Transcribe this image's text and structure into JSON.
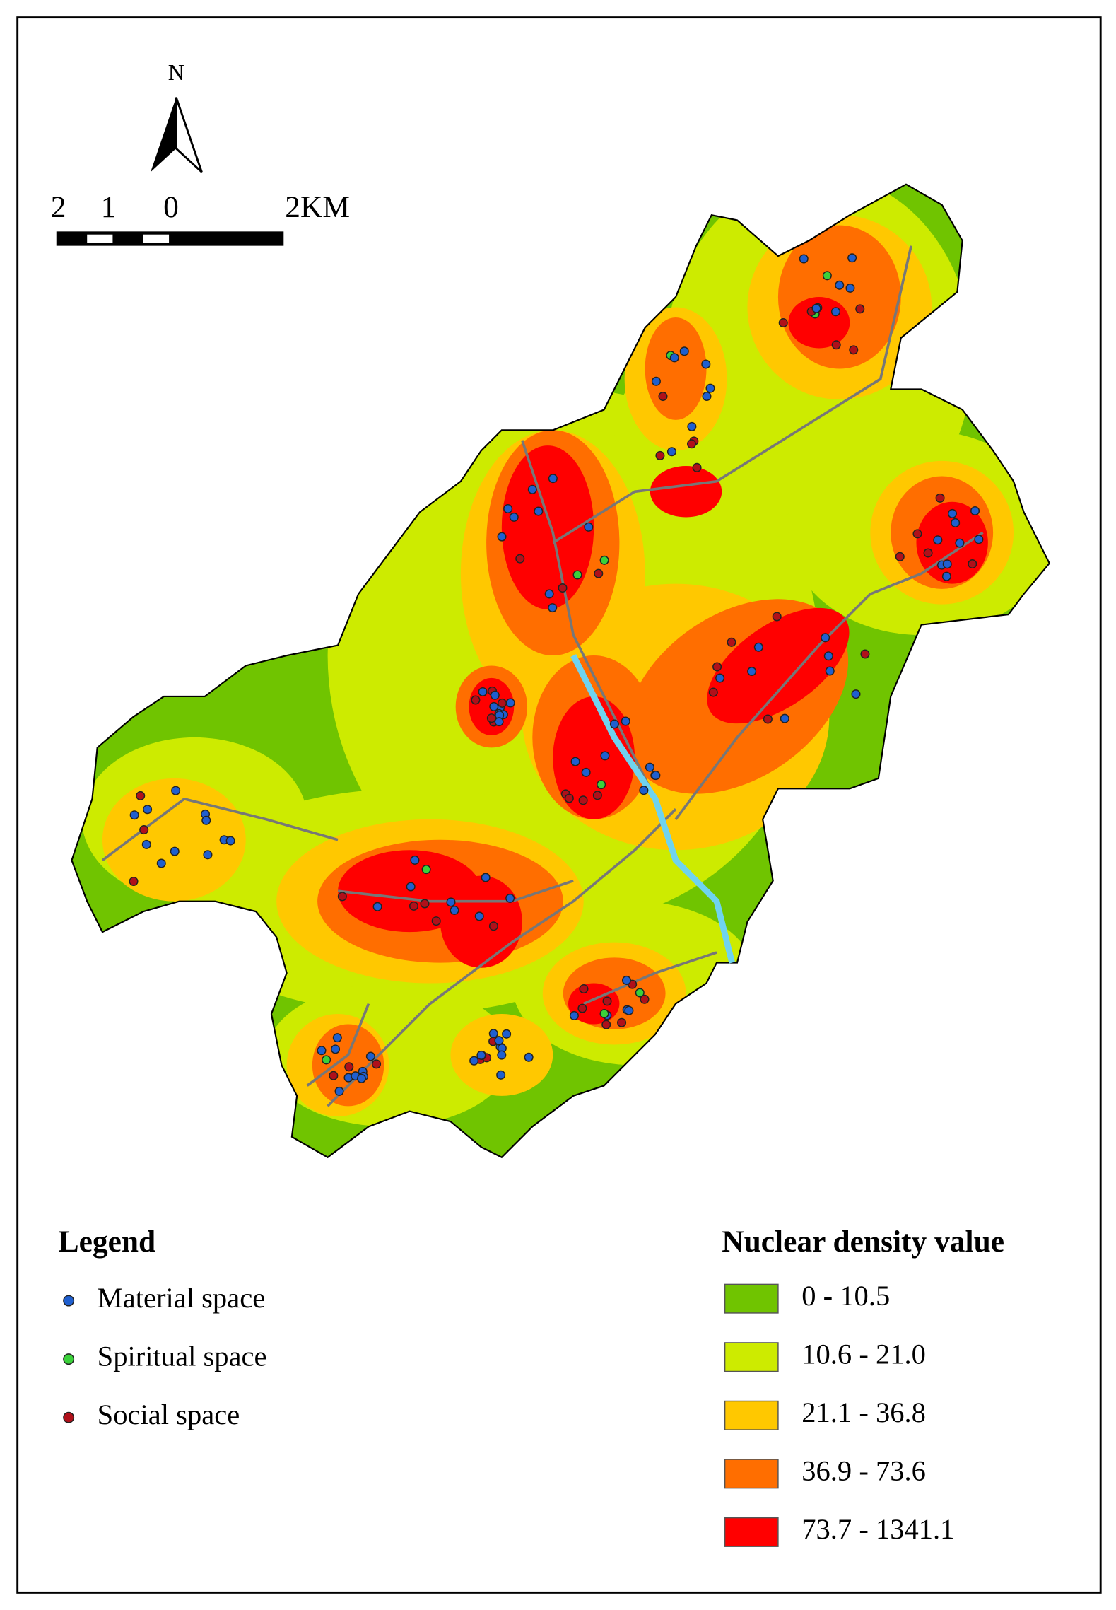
{
  "north": "N",
  "scale_bar": {
    "labels": [
      "2",
      "1",
      "0",
      "2KM"
    ]
  },
  "legend": {
    "title": "Legend",
    "items": [
      {
        "label": "Material space",
        "color": "#1f5fcf"
      },
      {
        "label": "Spiritual space",
        "color": "#3ad13a"
      },
      {
        "label": "Social space",
        "color": "#b0101a"
      }
    ]
  },
  "density_legend": {
    "title": "Nuclear density value",
    "classes": [
      {
        "label": "0 - 10.5",
        "color": "#70c400"
      },
      {
        "label": "10.6 - 21.0",
        "color": "#cdeb00"
      },
      {
        "label": "21.1 - 36.8",
        "color": "#ffc800"
      },
      {
        "label": "36.9 - 73.6",
        "color": "#ff6e00"
      },
      {
        "label": "73.7 - 1341.1",
        "color": "#ff0000"
      }
    ]
  }
}
